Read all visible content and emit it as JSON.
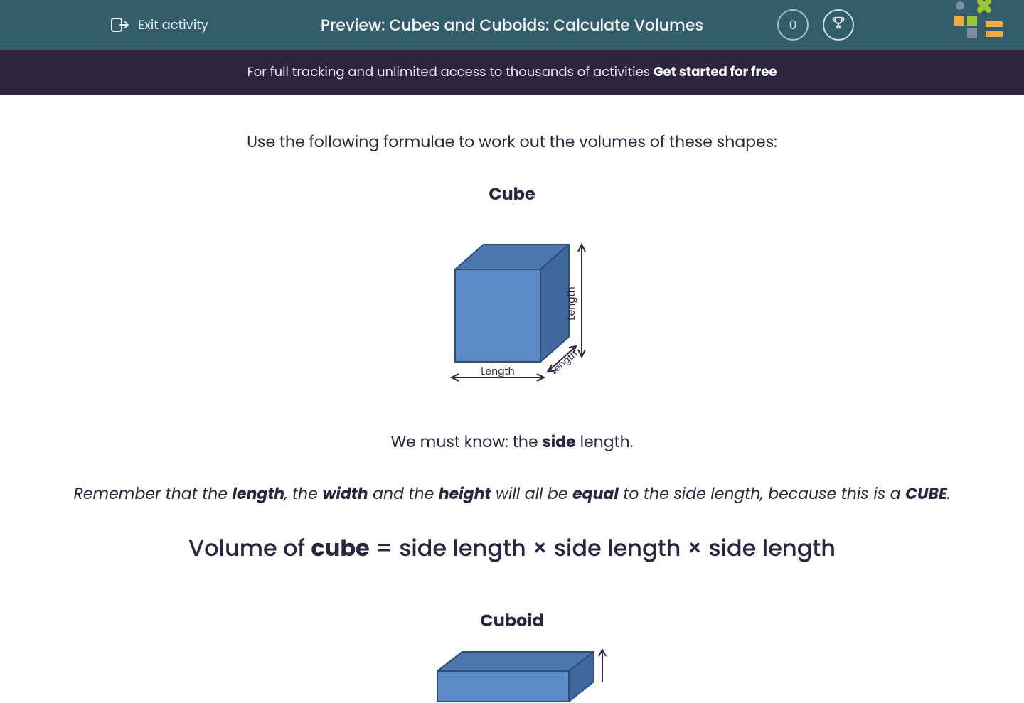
{
  "colors": {
    "topbar_bg": "#335d6b",
    "topbar_text": "#e8f0f0",
    "banner_bg": "#2d2440",
    "banner_text": "#e9e5f2",
    "body_text": "#2d2440",
    "cube_front": "#5b8bc4",
    "cube_top": "#4b77ad",
    "cube_side": "#406a9d",
    "cube_stroke": "#2d4d79",
    "deco_green": "#9cc53c",
    "deco_orange": "#f4a93d",
    "deco_gray": "#7d8ea0"
  },
  "topbar": {
    "exit_label": "Exit activity",
    "title": "Preview: Cubes and Cuboids: Calculate Volumes",
    "score": "0"
  },
  "banner": {
    "lead": "For full tracking and unlimited access to thousands of activities ",
    "cta": "Get started for free"
  },
  "content": {
    "intro": "Use the following formulae to work out the volumes of these shapes:",
    "cube": {
      "title": "Cube",
      "label_bottom": "Length",
      "label_right": "Length",
      "label_depth": "Length",
      "know_prefix": "We must know: the ",
      "know_bold": "side",
      "know_suffix": " length.",
      "remember_html": "Remember that the <b>length</b>, the <b>width</b> and the <b>height</b> will all be <b>equal</b> to the side length, because this is a <b>CUBE</b>.",
      "formula_prefix": "Volume of ",
      "formula_bold": "cube",
      "formula_suffix": " = side length × side length × side length"
    },
    "cuboid": {
      "title": "Cuboid"
    }
  }
}
